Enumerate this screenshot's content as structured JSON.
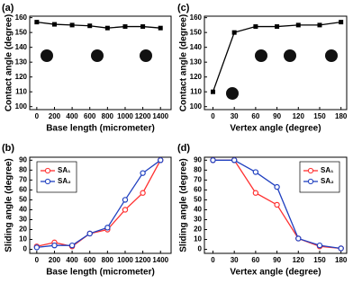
{
  "chart_data": [
    {
      "type": "line",
      "label": "(a)",
      "xlabel": "Base length (micrometer)",
      "ylabel": "Contact angle (degree)",
      "x": [
        0,
        200,
        400,
        600,
        800,
        1000,
        1200,
        1400
      ],
      "series": [
        {
          "color": "#000000",
          "marker": "square",
          "values": [
            157,
            155.5,
            155,
            154.5,
            153,
            154,
            154,
            153
          ]
        }
      ],
      "xlim": [
        -80,
        1520
      ],
      "xticks": [
        0,
        200,
        400,
        600,
        800,
        1000,
        1200,
        1400
      ],
      "ylim": [
        98,
        161
      ],
      "yticks": [
        100,
        110,
        120,
        130,
        140,
        150,
        160
      ]
    },
    {
      "type": "line",
      "label": "(b)",
      "xlabel": "Base length (micrometer)",
      "ylabel": "Sliding angle (degree)",
      "x": [
        0,
        200,
        400,
        600,
        800,
        1000,
        1200,
        1400
      ],
      "series": [
        {
          "name": "SA₁",
          "color": "#ff3030",
          "marker": "circle",
          "values": [
            3,
            7,
            3,
            16,
            20,
            40,
            57,
            90
          ]
        },
        {
          "name": "SA₂",
          "color": "#2040c0",
          "marker": "circle",
          "values": [
            2,
            4,
            4,
            16,
            22,
            50,
            77,
            90
          ]
        }
      ],
      "xlim": [
        -80,
        1520
      ],
      "xticks": [
        0,
        200,
        400,
        600,
        800,
        1000,
        1200,
        1400
      ],
      "ylim": [
        -4,
        93
      ],
      "yticks": [
        0,
        10,
        20,
        30,
        40,
        50,
        60,
        70,
        80,
        90
      ],
      "legend": "upper left"
    },
    {
      "type": "line",
      "label": "(c)",
      "xlabel": "Vertex angle (degree)",
      "ylabel": "Contact angle (degree)",
      "x": [
        0,
        30,
        60,
        90,
        120,
        150,
        180
      ],
      "series": [
        {
          "color": "#000000",
          "marker": "square",
          "values": [
            110,
            150,
            154,
            154,
            155,
            155,
            157
          ]
        }
      ],
      "xlim": [
        -12,
        188
      ],
      "xticks": [
        0,
        30,
        60,
        90,
        120,
        150,
        180
      ],
      "ylim": [
        98,
        161
      ],
      "yticks": [
        100,
        110,
        120,
        130,
        140,
        150,
        160
      ]
    },
    {
      "type": "line",
      "label": "(d)",
      "xlabel": "Vertex angle (degree)",
      "ylabel": "Sliding angle (degree)",
      "x": [
        0,
        30,
        60,
        90,
        120,
        150,
        180
      ],
      "series": [
        {
          "name": "SA₁",
          "color": "#ff3030",
          "marker": "circle",
          "values": [
            90,
            90,
            57,
            45,
            11,
            3,
            1
          ]
        },
        {
          "name": "SA₂",
          "color": "#2040c0",
          "marker": "circle",
          "values": [
            90,
            90,
            78,
            63,
            11,
            4,
            1
          ]
        }
      ],
      "xlim": [
        -12,
        188
      ],
      "xticks": [
        0,
        30,
        60,
        90,
        120,
        150,
        180
      ],
      "ylim": [
        -4,
        93
      ],
      "yticks": [
        0,
        10,
        20,
        30,
        40,
        50,
        60,
        70,
        80,
        90
      ],
      "legend": "upper right"
    }
  ]
}
